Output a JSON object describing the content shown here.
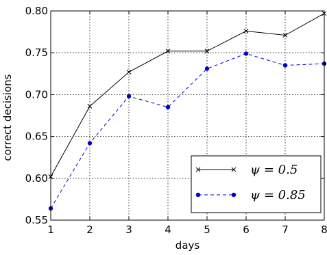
{
  "chart_data": {
    "type": "line",
    "xlabel": "days",
    "ylabel": "correct decisions",
    "xlim": [
      1,
      8
    ],
    "ylim": [
      0.55,
      0.8
    ],
    "x_ticks": [
      1,
      2,
      3,
      4,
      5,
      6,
      7,
      8
    ],
    "y_ticks": [
      "0.55",
      "0.60",
      "0.65",
      "0.70",
      "0.75",
      "0.80"
    ],
    "grid": true,
    "legend_position": "lower-right",
    "series": [
      {
        "name": "ψ = 0.5",
        "color": "#000000",
        "line_style": "solid",
        "marker": "x",
        "x": [
          1,
          2,
          3,
          4,
          5,
          6,
          7,
          8
        ],
        "values": [
          0.602,
          0.686,
          0.727,
          0.752,
          0.752,
          0.776,
          0.771,
          0.797
        ]
      },
      {
        "name": "ψ = 0.85",
        "color": "#0000cc",
        "line_style": "dashed",
        "marker": "circle",
        "x": [
          1,
          2,
          3,
          4,
          5,
          6,
          7,
          8
        ],
        "values": [
          0.564,
          0.642,
          0.698,
          0.685,
          0.731,
          0.749,
          0.735,
          0.737
        ]
      }
    ]
  }
}
